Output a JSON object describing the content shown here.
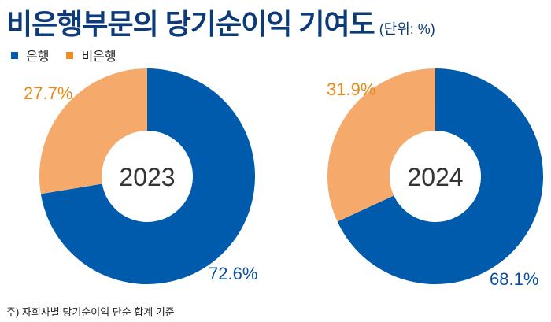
{
  "chart_data": {
    "type": "pie",
    "title": "비은행부문의 당기순이익 기여도",
    "unit": "(단위: %)",
    "legend": [
      "은행",
      "비은행"
    ],
    "legend_placement": "top-left",
    "colors": {
      "은행": "#005bac",
      "비은행": "#f5aa6c",
      "label_bank": "#0b4f9c",
      "label_nonbank": "#e88a1a",
      "title": "#0d3a78"
    },
    "charts": [
      {
        "center_label": "2023",
        "values": {
          "은행": 72.6,
          "비은행": 27.7
        },
        "labels": {
          "은행": "72.6%",
          "비은행": "27.7%"
        }
      },
      {
        "center_label": "2024",
        "values": {
          "은행": 68.1,
          "비은행": 31.9
        },
        "labels": {
          "은행": "68.1%",
          "비은행": "31.9%"
        }
      }
    ],
    "footnote": "주) 자회사별 당기순이익 단순 합계 기준"
  }
}
